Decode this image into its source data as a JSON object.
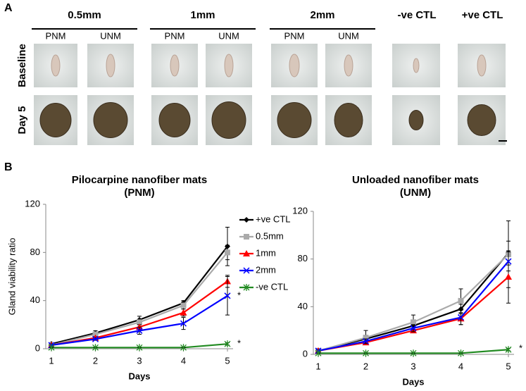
{
  "panel_a": {
    "label": "A",
    "groups": [
      "0.5mm",
      "1mm",
      "2mm",
      "-ve CTL",
      "+ve CTL"
    ],
    "column_labels": [
      "PNM",
      "UNM",
      "PNM",
      "UNM",
      "PNM",
      "UNM"
    ],
    "row_labels": [
      "Baseline",
      "Day 5"
    ]
  },
  "panel_b_label": "B",
  "chart_data": [
    {
      "type": "line",
      "title": "Pilocarpine nanofiber mats",
      "subtitle": "(PNM)",
      "x_label": "Days",
      "y_label": "Gland viability ratio",
      "x": [
        1,
        2,
        3,
        4,
        5
      ],
      "xlim": [
        1,
        5
      ],
      "xticks": [
        1,
        2,
        3,
        4,
        5
      ],
      "ylim": [
        0,
        120
      ],
      "yticks": [
        0,
        40,
        80,
        120
      ],
      "annotations": [
        "*",
        "*"
      ],
      "series": [
        {
          "name": "+ve CTL",
          "color": "#000000",
          "marker": "diamond",
          "values": [
            4,
            13,
            24,
            38,
            85
          ],
          "errors": [
            1,
            2,
            3,
            2,
            16
          ]
        },
        {
          "name": "0.5mm",
          "color": "#aaaaaa",
          "marker": "square",
          "values": [
            3,
            12,
            22,
            36,
            80
          ],
          "errors": [
            1,
            2,
            2,
            3,
            6
          ]
        },
        {
          "name": "1mm",
          "color": "#ff0000",
          "marker": "triangle",
          "values": [
            3,
            9,
            18,
            30,
            56
          ],
          "errors": [
            1,
            1,
            2,
            3,
            5
          ]
        },
        {
          "name": "2mm",
          "color": "#0000ff",
          "marker": "cross",
          "values": [
            3,
            8,
            15,
            21,
            44
          ],
          "errors": [
            1,
            1,
            3,
            5,
            16
          ]
        },
        {
          "name": "-ve CTL",
          "color": "#228b22",
          "marker": "star",
          "values": [
            1,
            1,
            1,
            1,
            4
          ],
          "errors": [
            0,
            0,
            0,
            0,
            1
          ]
        }
      ]
    },
    {
      "type": "line",
      "title": "Unloaded nanofiber mats",
      "subtitle": "(UNM)",
      "x_label": "Days",
      "x": [
        1,
        2,
        3,
        4,
        5
      ],
      "xlim": [
        1,
        5
      ],
      "xticks": [
        1,
        2,
        3,
        4,
        5
      ],
      "ylim": [
        0,
        120
      ],
      "yticks": [
        0,
        40,
        80,
        120
      ],
      "annotations": [
        "*"
      ],
      "series": [
        {
          "color": "#000000",
          "marker": "diamond",
          "values": [
            3,
            13,
            24,
            38,
            85
          ],
          "errors": [
            1,
            3,
            3,
            4,
            10
          ]
        },
        {
          "color": "#aaaaaa",
          "marker": "square",
          "values": [
            3,
            14,
            27,
            45,
            84
          ],
          "errors": [
            1,
            6,
            6,
            10,
            28
          ]
        },
        {
          "color": "#ff0000",
          "marker": "triangle",
          "values": [
            3,
            10,
            20,
            30,
            65
          ],
          "errors": [
            1,
            2,
            2,
            5,
            22
          ]
        },
        {
          "color": "#0000ff",
          "marker": "cross",
          "values": [
            3,
            11,
            22,
            31,
            78
          ],
          "errors": [
            1,
            2,
            3,
            6,
            8
          ]
        },
        {
          "color": "#228b22",
          "marker": "star",
          "values": [
            1,
            1,
            1,
            1,
            4
          ],
          "errors": [
            0,
            0,
            0,
            0,
            1
          ]
        }
      ]
    }
  ]
}
